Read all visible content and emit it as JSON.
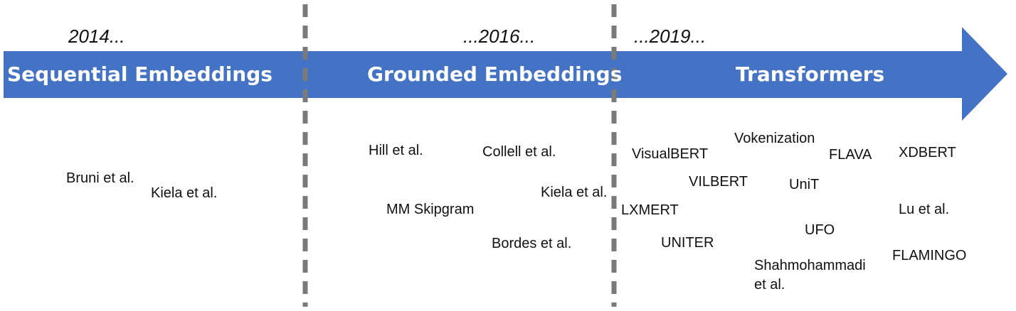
{
  "colors": {
    "arrow": "#4472c4",
    "divider": "#7a7a7a",
    "text": "#111111"
  },
  "eras": [
    {
      "year": "2014...",
      "phase": "Sequential Embeddings",
      "works": [
        "Bruni et al.",
        "Kiela et al."
      ]
    },
    {
      "year": "...2016...",
      "phase": "Grounded Embeddings",
      "works": [
        "Hill et al.",
        "Collell et al.",
        "Kiela et al.",
        "MM Skipgram",
        "Bordes et al."
      ]
    },
    {
      "year": "...2019...",
      "phase": "Transformers",
      "works": [
        "VisualBERT",
        "Vokenization",
        "FLAVA",
        "XDBERT",
        "VILBERT",
        "UniT",
        "LXMERT",
        "Lu et al.",
        "UFO",
        "UNITER",
        "FLAMINGO",
        "Shahmohammadi",
        "et al."
      ]
    }
  ]
}
